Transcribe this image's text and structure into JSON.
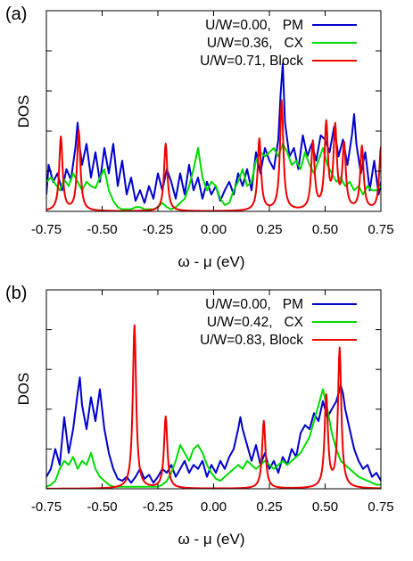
{
  "chart_data": [
    {
      "type": "line",
      "panel_label": "(a)",
      "ylabel": "DOS",
      "xlabel": "ω - μ (eV)",
      "xlim": [
        -0.75,
        0.75
      ],
      "xticks": [
        "-0.75",
        "-0.50",
        "-0.25",
        "0.00",
        "0.25",
        "0.50",
        "0.75"
      ],
      "legend_position": "top-right",
      "grid": false,
      "series": [
        {
          "name": "U/W=0.00,   PM",
          "color": "#0000cc",
          "x": [
            -0.75,
            -0.74,
            -0.72,
            -0.7,
            -0.68,
            -0.66,
            -0.64,
            -0.62,
            -0.61,
            -0.6,
            -0.59,
            -0.57,
            -0.55,
            -0.53,
            -0.51,
            -0.49,
            -0.47,
            -0.45,
            -0.43,
            -0.41,
            -0.39,
            -0.37,
            -0.35,
            -0.33,
            -0.31,
            -0.29,
            -0.27,
            -0.25,
            -0.23,
            -0.21,
            -0.19,
            -0.17,
            -0.15,
            -0.13,
            -0.11,
            -0.09,
            -0.07,
            -0.05,
            -0.03,
            -0.01,
            0.01,
            0.03,
            0.05,
            0.07,
            0.09,
            0.11,
            0.13,
            0.15,
            0.17,
            0.19,
            0.21,
            0.23,
            0.25,
            0.27,
            0.29,
            0.3,
            0.31,
            0.32,
            0.34,
            0.36,
            0.38,
            0.4,
            0.42,
            0.44,
            0.46,
            0.48,
            0.5,
            0.52,
            0.54,
            0.56,
            0.58,
            0.6,
            0.62,
            0.63,
            0.64,
            0.66,
            0.68,
            0.7,
            0.72,
            0.74,
            0.75
          ],
          "y": [
            0.08,
            0.22,
            0.14,
            0.18,
            0.1,
            0.2,
            0.15,
            0.3,
            0.42,
            0.3,
            0.22,
            0.32,
            0.16,
            0.28,
            0.14,
            0.3,
            0.18,
            0.32,
            0.12,
            0.24,
            0.08,
            0.16,
            0.05,
            0.1,
            0.04,
            0.12,
            0.06,
            0.18,
            0.1,
            0.2,
            0.14,
            0.06,
            0.18,
            0.08,
            0.22,
            0.1,
            0.16,
            0.06,
            0.14,
            0.08,
            0.12,
            0.05,
            0.1,
            0.14,
            0.08,
            0.18,
            0.12,
            0.2,
            0.1,
            0.28,
            0.18,
            0.3,
            0.24,
            0.2,
            0.34,
            0.55,
            0.7,
            0.42,
            0.26,
            0.3,
            0.2,
            0.36,
            0.26,
            0.32,
            0.24,
            0.36,
            0.34,
            0.28,
            0.4,
            0.26,
            0.34,
            0.22,
            0.36,
            0.46,
            0.32,
            0.18,
            0.28,
            0.1,
            0.24,
            0.08,
            0.14
          ]
        },
        {
          "name": "U/W=0.36,   CX",
          "color": "#00dd00",
          "x": [
            -0.75,
            -0.73,
            -0.71,
            -0.69,
            -0.67,
            -0.65,
            -0.63,
            -0.61,
            -0.59,
            -0.57,
            -0.55,
            -0.53,
            -0.51,
            -0.49,
            -0.47,
            -0.45,
            -0.43,
            -0.41,
            -0.39,
            -0.37,
            -0.35,
            -0.33,
            -0.31,
            -0.29,
            -0.27,
            -0.25,
            -0.23,
            -0.21,
            -0.19,
            -0.17,
            -0.15,
            -0.13,
            -0.11,
            -0.09,
            -0.07,
            -0.05,
            -0.03,
            -0.01,
            0.01,
            0.03,
            0.05,
            0.07,
            0.09,
            0.11,
            0.13,
            0.15,
            0.17,
            0.19,
            0.21,
            0.23,
            0.25,
            0.27,
            0.29,
            0.31,
            0.33,
            0.35,
            0.37,
            0.39,
            0.41,
            0.43,
            0.45,
            0.47,
            0.49,
            0.51,
            0.53,
            0.55,
            0.57,
            0.59,
            0.61,
            0.63,
            0.65,
            0.67,
            0.69,
            0.71,
            0.73,
            0.75
          ],
          "y": [
            0.14,
            0.16,
            0.13,
            0.1,
            0.15,
            0.12,
            0.18,
            0.14,
            0.1,
            0.14,
            0.12,
            0.11,
            0.16,
            0.2,
            0.1,
            0.05,
            0.02,
            0.01,
            0.01,
            0.01,
            0.02,
            0.02,
            0.01,
            0.01,
            0.01,
            0.02,
            0.04,
            0.02,
            0.01,
            0.02,
            0.04,
            0.06,
            0.12,
            0.2,
            0.3,
            0.16,
            0.1,
            0.14,
            0.12,
            0.06,
            0.03,
            0.04,
            0.1,
            0.14,
            0.2,
            0.12,
            0.14,
            0.24,
            0.28,
            0.26,
            0.28,
            0.3,
            0.26,
            0.32,
            0.28,
            0.22,
            0.24,
            0.2,
            0.28,
            0.22,
            0.18,
            0.24,
            0.3,
            0.22,
            0.18,
            0.14,
            0.16,
            0.12,
            0.14,
            0.1,
            0.12,
            0.08,
            0.12,
            0.1,
            0.1,
            0.12
          ]
        },
        {
          "name": "U/W=0.71, Block",
          "color": "#ee0000",
          "peaks": [
            [
              -0.685,
              0.35
            ],
            [
              -0.605,
              0.38
            ],
            [
              -0.215,
              0.32
            ],
            [
              0.205,
              0.34
            ],
            [
              0.305,
              0.52
            ],
            [
              0.445,
              0.32
            ],
            [
              0.505,
              0.4
            ],
            [
              0.545,
              0.38
            ],
            [
              0.585,
              0.3
            ],
            [
              0.665,
              0.3
            ],
            [
              0.75,
              0.3
            ]
          ]
        }
      ]
    },
    {
      "type": "line",
      "panel_label": "(b)",
      "ylabel": "DOS",
      "xlabel": "ω - μ (eV)",
      "xlim": [
        -0.75,
        0.75
      ],
      "xticks": [
        "-0.75",
        "-0.50",
        "-0.25",
        "0.00",
        "0.25",
        "0.50",
        "0.75"
      ],
      "legend_position": "top-right",
      "grid": false,
      "series": [
        {
          "name": "U/W=0.00,   PM",
          "color": "#0000cc",
          "x": [
            -0.75,
            -0.73,
            -0.71,
            -0.69,
            -0.67,
            -0.65,
            -0.63,
            -0.61,
            -0.6,
            -0.59,
            -0.57,
            -0.55,
            -0.53,
            -0.51,
            -0.49,
            -0.47,
            -0.45,
            -0.43,
            -0.41,
            -0.39,
            -0.37,
            -0.35,
            -0.33,
            -0.31,
            -0.29,
            -0.27,
            -0.25,
            -0.23,
            -0.21,
            -0.19,
            -0.17,
            -0.15,
            -0.13,
            -0.11,
            -0.09,
            -0.07,
            -0.05,
            -0.03,
            -0.01,
            0.01,
            0.03,
            0.05,
            0.07,
            0.09,
            0.11,
            0.12,
            0.13,
            0.15,
            0.17,
            0.19,
            0.21,
            0.23,
            0.25,
            0.27,
            0.29,
            0.31,
            0.33,
            0.35,
            0.37,
            0.39,
            0.41,
            0.43,
            0.45,
            0.47,
            0.49,
            0.51,
            0.53,
            0.55,
            0.57,
            0.58,
            0.59,
            0.61,
            0.63,
            0.65,
            0.67,
            0.69,
            0.71,
            0.73,
            0.75
          ],
          "y": [
            0.06,
            0.1,
            0.2,
            0.12,
            0.36,
            0.18,
            0.3,
            0.48,
            0.56,
            0.42,
            0.3,
            0.46,
            0.34,
            0.5,
            0.3,
            0.18,
            0.1,
            0.05,
            0.04,
            0.06,
            0.03,
            0.06,
            0.1,
            0.05,
            0.07,
            0.03,
            0.06,
            0.1,
            0.08,
            0.12,
            0.06,
            0.1,
            0.14,
            0.08,
            0.12,
            0.1,
            0.14,
            0.06,
            0.12,
            0.08,
            0.14,
            0.1,
            0.16,
            0.2,
            0.3,
            0.36,
            0.3,
            0.22,
            0.14,
            0.22,
            0.12,
            0.18,
            0.1,
            0.14,
            0.08,
            0.16,
            0.12,
            0.2,
            0.16,
            0.28,
            0.32,
            0.3,
            0.38,
            0.34,
            0.44,
            0.36,
            0.4,
            0.44,
            0.52,
            0.48,
            0.4,
            0.3,
            0.2,
            0.14,
            0.1,
            0.12,
            0.06,
            0.08,
            0.04
          ]
        },
        {
          "name": "U/W=0.42,   CX",
          "color": "#00dd00",
          "x": [
            -0.75,
            -0.73,
            -0.71,
            -0.69,
            -0.67,
            -0.65,
            -0.63,
            -0.61,
            -0.59,
            -0.57,
            -0.55,
            -0.53,
            -0.51,
            -0.49,
            -0.47,
            -0.45,
            -0.43,
            -0.41,
            -0.39,
            -0.37,
            -0.35,
            -0.33,
            -0.31,
            -0.29,
            -0.27,
            -0.25,
            -0.23,
            -0.21,
            -0.19,
            -0.17,
            -0.15,
            -0.13,
            -0.11,
            -0.09,
            -0.07,
            -0.05,
            -0.03,
            -0.01,
            0.01,
            0.03,
            0.05,
            0.07,
            0.09,
            0.11,
            0.13,
            0.15,
            0.17,
            0.19,
            0.21,
            0.23,
            0.25,
            0.27,
            0.29,
            0.31,
            0.33,
            0.35,
            0.37,
            0.39,
            0.41,
            0.43,
            0.45,
            0.47,
            0.49,
            0.51,
            0.53,
            0.55,
            0.57,
            0.59,
            0.61,
            0.63,
            0.65,
            0.67,
            0.69,
            0.71,
            0.73,
            0.75
          ],
          "y": [
            0.01,
            0.02,
            0.04,
            0.1,
            0.14,
            0.12,
            0.16,
            0.1,
            0.14,
            0.12,
            0.18,
            0.1,
            0.06,
            0.04,
            0.02,
            0.01,
            0.01,
            0.01,
            0.01,
            0.01,
            0.01,
            0.01,
            0.01,
            0.01,
            0.01,
            0.01,
            0.02,
            0.04,
            0.08,
            0.14,
            0.22,
            0.18,
            0.14,
            0.2,
            0.22,
            0.18,
            0.12,
            0.08,
            0.05,
            0.04,
            0.06,
            0.08,
            0.1,
            0.12,
            0.1,
            0.14,
            0.12,
            0.1,
            0.12,
            0.14,
            0.12,
            0.1,
            0.12,
            0.14,
            0.12,
            0.14,
            0.16,
            0.18,
            0.22,
            0.26,
            0.34,
            0.42,
            0.5,
            0.4,
            0.28,
            0.2,
            0.14,
            0.12,
            0.1,
            0.08,
            0.06,
            0.05,
            0.04,
            0.03,
            0.02,
            0.02
          ]
        },
        {
          "name": "U/W=0.83, Block",
          "color": "#ee0000",
          "peaks": [
            [
              -0.355,
              0.82
            ],
            [
              -0.215,
              0.36
            ],
            [
              0.225,
              0.34
            ],
            [
              0.505,
              0.46
            ],
            [
              0.565,
              0.7
            ]
          ]
        }
      ]
    }
  ]
}
